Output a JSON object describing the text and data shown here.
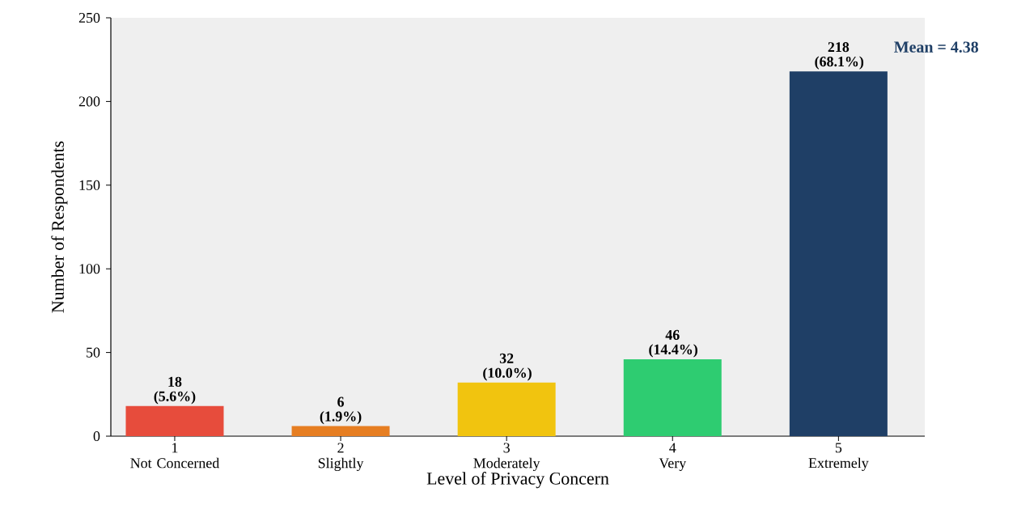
{
  "chart_data": {
    "type": "bar",
    "xlabel": "Level of Privacy Concern",
    "ylabel": "Number of Respondents",
    "categories": [
      "1\nNot Concerned",
      "2\nSlightly",
      "3\nModerately",
      "4\nVery",
      "5\nExtremely"
    ],
    "values": [
      18,
      6,
      32,
      46,
      218
    ],
    "colors": [
      "#e74c3c",
      "#e67e22",
      "#f1c40f",
      "#2ecc71",
      "#1f3f66"
    ],
    "value_labels": [
      "18 (5.6%)",
      "6 (1.9%)",
      "32 (10.0%)",
      "46 (14.4%)",
      "218 (68.1%)"
    ],
    "annotations": [
      "Mean = 4.38"
    ],
    "ylim": [
      0,
      250
    ],
    "yticks": [
      0,
      50,
      100,
      150,
      200,
      250
    ]
  }
}
